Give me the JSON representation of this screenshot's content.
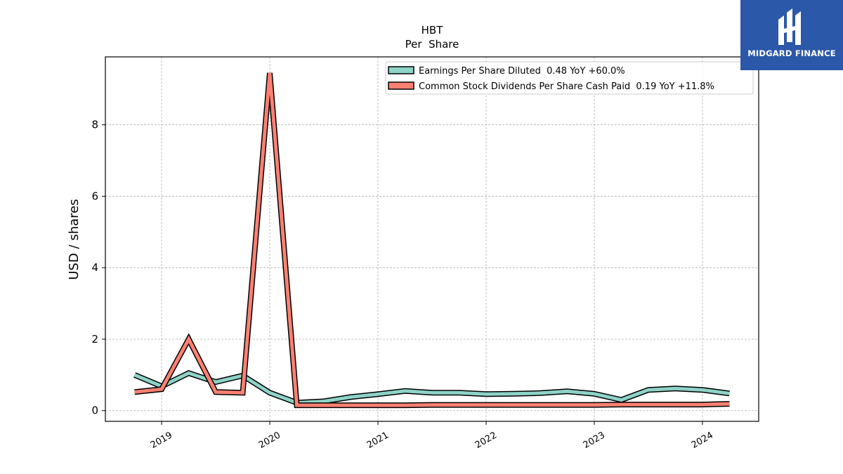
{
  "chart_data": {
    "type": "line",
    "title": "HBT",
    "subtitle": "Per  Share",
    "xlabel": "",
    "ylabel": "USD / shares",
    "xlim": [
      2018.48,
      2024.52
    ],
    "ylim": [
      -0.3,
      9.9
    ],
    "x_ticks": [
      2019,
      2020,
      2021,
      2022,
      2023,
      2024
    ],
    "x_tick_labels": [
      "2019",
      "2020",
      "2021",
      "2022",
      "2023",
      "2024"
    ],
    "y_ticks": [
      0,
      2,
      4,
      6,
      8
    ],
    "y_tick_labels": [
      "0",
      "2",
      "4",
      "6",
      "8"
    ],
    "grid": true,
    "legend_position": "top-right",
    "x": [
      2018.75,
      2019.0,
      2019.25,
      2019.5,
      2019.75,
      2020.0,
      2020.25,
      2020.5,
      2020.75,
      2021.0,
      2021.25,
      2021.5,
      2021.75,
      2022.0,
      2022.25,
      2022.5,
      2022.75,
      2023.0,
      2023.25,
      2023.5,
      2023.75,
      2024.0,
      2024.25
    ],
    "series": [
      {
        "name": "Earnings Per Share Diluted  0.48 YoY +60.0%",
        "color": "#8dd3c7",
        "values": [
          1.0,
          0.68,
          1.05,
          0.8,
          0.98,
          0.5,
          0.22,
          0.26,
          0.38,
          0.46,
          0.55,
          0.5,
          0.5,
          0.46,
          0.47,
          0.49,
          0.54,
          0.47,
          0.3,
          0.58,
          0.62,
          0.58,
          0.48
        ]
      },
      {
        "name": "Common Stock Dividends Per Share Cash Paid  0.19 YoY +11.8%",
        "color": "#fb8072",
        "values": [
          0.52,
          0.6,
          2.0,
          0.52,
          0.5,
          9.45,
          0.15,
          0.15,
          0.15,
          0.15,
          0.15,
          0.16,
          0.16,
          0.16,
          0.16,
          0.16,
          0.16,
          0.16,
          0.17,
          0.17,
          0.17,
          0.17,
          0.19
        ]
      }
    ]
  },
  "logo": {
    "text": "MIDGARD FINANCE",
    "color": "#2b58a8"
  }
}
